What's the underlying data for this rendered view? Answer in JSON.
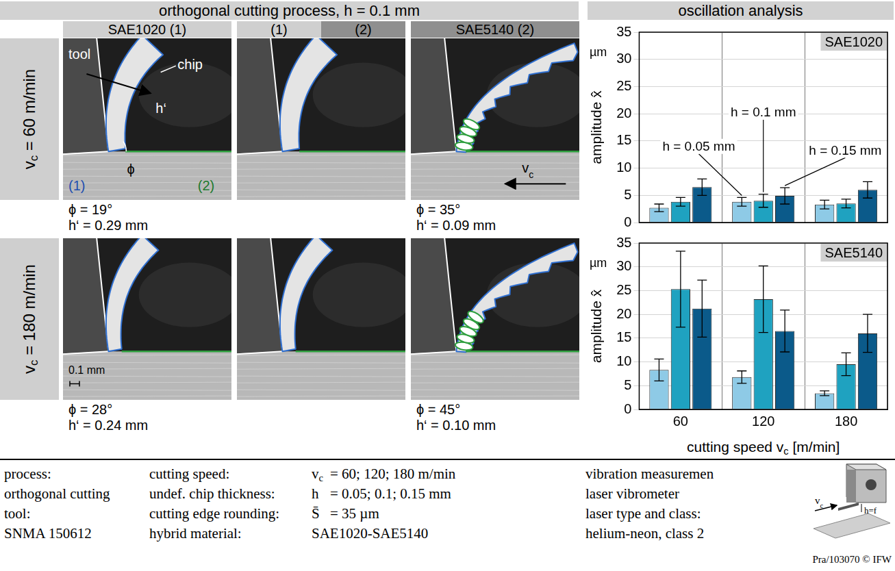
{
  "header": {
    "left": "orthogonal cutting process, h = 0.1 mm",
    "right": "oscillation analysis"
  },
  "process_images": {
    "columns": [
      [
        "SAE1020 (1)"
      ],
      [
        "(1)",
        "(2)"
      ],
      [
        "SAE5140 (2)"
      ]
    ],
    "rows": [
      {
        "label": "vc = 60 m/min",
        "results": [
          [
            "ϕ = 19°",
            "h‘ = 0.29 mm"
          ],
          null,
          [
            "ϕ = 35°",
            "h‘ = 0.09 mm"
          ]
        ]
      },
      {
        "label": "vc = 180 m/min",
        "results": [
          [
            "ϕ = 28°",
            "h‘ = 0.24 mm"
          ],
          null,
          [
            "ϕ = 45°",
            "h‘ = 0.10 mm"
          ]
        ]
      }
    ],
    "labels": {
      "tool": "tool",
      "chip": "chip",
      "chip_thickness": "h‘",
      "shear_angle": "ϕ",
      "material_1": "(1)",
      "material_2": "(2)",
      "cutting_speed": "vc",
      "scale_bar": "0.1 mm"
    }
  },
  "chart_data": [
    {
      "type": "bar",
      "title": "SAE1020",
      "y_label": "amplitude x̂",
      "y_unit": "µm",
      "categories": [
        60,
        120,
        180
      ],
      "series": [
        {
          "name": "h = 0.05 mm",
          "color": "#8ecae6",
          "values": [
            2.7,
            3.8,
            3.3
          ],
          "errors": [
            0.7,
            0.8,
            0.8
          ]
        },
        {
          "name": "h = 0.1 mm",
          "color": "#1fa2c0",
          "values": [
            3.8,
            4.0,
            3.5
          ],
          "errors": [
            0.8,
            1.2,
            0.8
          ]
        },
        {
          "name": "h = 0.15 mm",
          "color": "#0b5a8a",
          "values": [
            6.5,
            4.9,
            6.0
          ],
          "errors": [
            1.5,
            1.5,
            1.5
          ]
        }
      ],
      "ylim": [
        0,
        35
      ],
      "yticks": [
        0,
        5,
        10,
        15,
        20,
        25,
        30,
        35
      ],
      "grid": true,
      "tick_labels": "y"
    },
    {
      "type": "bar",
      "title": "SAE5140",
      "y_label": "amplitude x̂",
      "y_unit": "µm",
      "x_label": "cutting speed vc [m/min]",
      "categories": [
        60,
        120,
        180
      ],
      "series": [
        {
          "color": "#8ecae6",
          "values": [
            8.3,
            6.8,
            3.4
          ],
          "errors": [
            2.3,
            1.3,
            0.5
          ]
        },
        {
          "color": "#1fa2c0",
          "values": [
            25.3,
            23.2,
            9.5
          ],
          "errors": [
            8.0,
            7.0,
            2.4
          ]
        },
        {
          "color": "#0b5a8a",
          "values": [
            21.2,
            16.5,
            16.0
          ],
          "errors": [
            6.0,
            4.4,
            4.0
          ]
        }
      ],
      "ylim": [
        0,
        35
      ],
      "yticks": [
        0,
        5,
        10,
        15,
        20,
        25,
        30,
        35
      ],
      "grid": true
    }
  ],
  "footer": {
    "process": [
      "process:",
      "orthogonal cutting"
    ],
    "tool": [
      "tool:",
      "SNMA 150612"
    ],
    "parameters": [
      [
        "cutting speed:",
        "vc",
        "= 60; 120; 180 m/min"
      ],
      [
        "undef. chip thickness:",
        "h",
        "= 0.05; 0.1; 0.15 mm"
      ],
      [
        "cutting edge rounding:",
        "S̄",
        "= 35 µm"
      ],
      [
        "hybrid material:",
        "SAE1020-SAE5140"
      ]
    ],
    "measurement": [
      [
        "vibration measuremen",
        "laser vibrometer"
      ],
      [
        "laser type and class:",
        "helium-neon, class 2"
      ]
    ],
    "sketch_labels": [
      "vc",
      "h=f"
    ],
    "credit": "Pra/103070 © IFW"
  }
}
